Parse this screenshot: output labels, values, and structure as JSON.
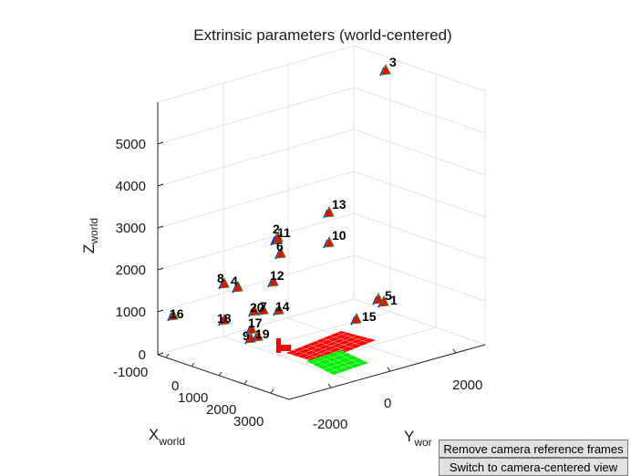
{
  "figure": {
    "title": "Extrinsic parameters (world-centered)",
    "z_label_main": "Z",
    "z_label_sub": "world",
    "x_label_main": "X",
    "x_label_sub": "world",
    "y_label_main": "Y",
    "y_label_sub": "wor",
    "z_ticks": [
      "0",
      "1000",
      "2000",
      "3000",
      "4000",
      "5000"
    ],
    "x_ticks": [
      "-1000",
      "0",
      "1000",
      "2000",
      "3000"
    ],
    "y_ticks": [
      "-2000",
      "0",
      "2000"
    ]
  },
  "cameras": [
    {
      "label": "1"
    },
    {
      "label": "2"
    },
    {
      "label": "3"
    },
    {
      "label": "4"
    },
    {
      "label": "5"
    },
    {
      "label": "6"
    },
    {
      "label": "7"
    },
    {
      "label": "8"
    },
    {
      "label": "9"
    },
    {
      "label": "10"
    },
    {
      "label": "11"
    },
    {
      "label": "12"
    },
    {
      "label": "13"
    },
    {
      "label": "14"
    },
    {
      "label": "15"
    },
    {
      "label": "16"
    },
    {
      "label": "17"
    },
    {
      "label": "18"
    },
    {
      "label": "19"
    },
    {
      "label": "20"
    }
  ],
  "colors": {
    "camera_face": "#ff0000",
    "camera_edge": "#2f8a2f",
    "axis_line": "#0000ff",
    "board_red": "#ff0000",
    "board_green": "#00ee00"
  },
  "buttons": {
    "remove_frames": "Remove camera reference frames",
    "switch_view": "Switch to camera-centered view"
  }
}
